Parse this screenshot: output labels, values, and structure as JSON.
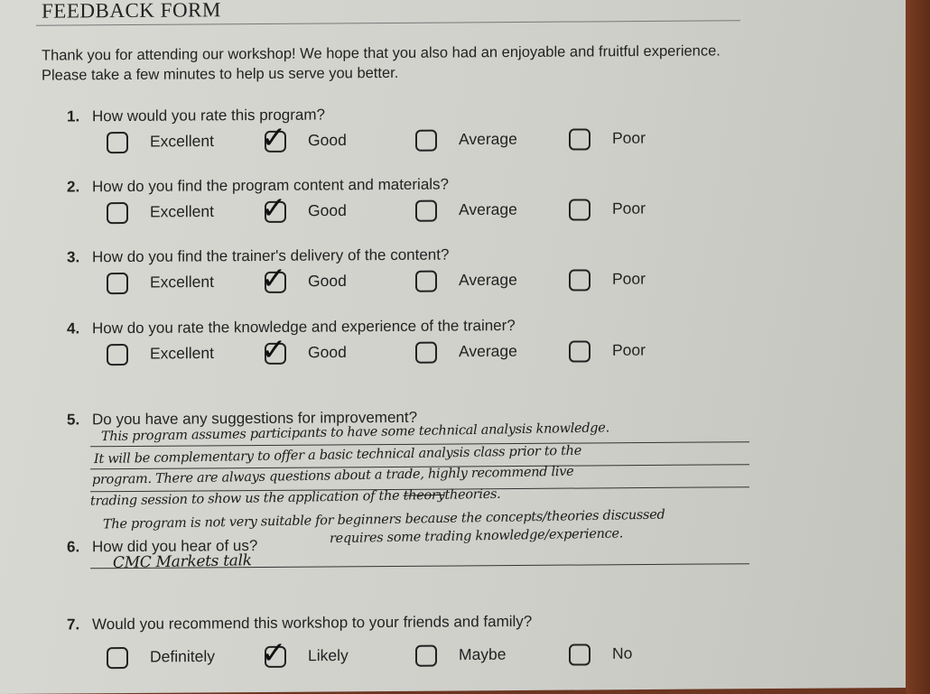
{
  "form": {
    "title": "FEEDBACK FORM",
    "intro": "Thank you for attending our workshop! We hope that you also had an enjoyable and fruitful experience. Please take a few minutes to help us serve you better."
  },
  "questions": [
    {
      "num": "1.",
      "text": "How would you rate this program?",
      "options": [
        "Excellent",
        "Good",
        "Average",
        "Poor"
      ],
      "selected": "Good"
    },
    {
      "num": "2.",
      "text": "How do you find the program content and materials?",
      "options": [
        "Excellent",
        "Good",
        "Average",
        "Poor"
      ],
      "selected": "Good"
    },
    {
      "num": "3.",
      "text": "How do you find the trainer's delivery of the content?",
      "options": [
        "Excellent",
        "Good",
        "Average",
        "Poor"
      ],
      "selected": "Good"
    },
    {
      "num": "4.",
      "text": "How do you rate the knowledge and experience of the trainer?",
      "options": [
        "Excellent",
        "Good",
        "Average",
        "Poor"
      ],
      "selected": "Good"
    },
    {
      "num": "5.",
      "text": "Do you have any suggestions for improvement?",
      "answer_lines": [
        "This program assumes participants to have some technical analysis knowledge.",
        "It will be complementary to offer a basic technical analysis class prior to the",
        "program. There are always questions about a trade, highly recommend live",
        "trading session to show us the application of the",
        "The program is not very suitable for beginners because the concepts/theories discussed",
        "requires some trading knowledge/experience."
      ],
      "struck_word": "theory",
      "after_strike": "theories."
    },
    {
      "num": "6.",
      "text": "How did you hear of us?",
      "answer": "CMC Markets talk"
    },
    {
      "num": "7.",
      "text": "Would you recommend this workshop to your friends and family?",
      "options": [
        "Definitely",
        "Likely",
        "Maybe",
        "No"
      ],
      "selected": "Likely"
    }
  ],
  "check_mark": "✓"
}
